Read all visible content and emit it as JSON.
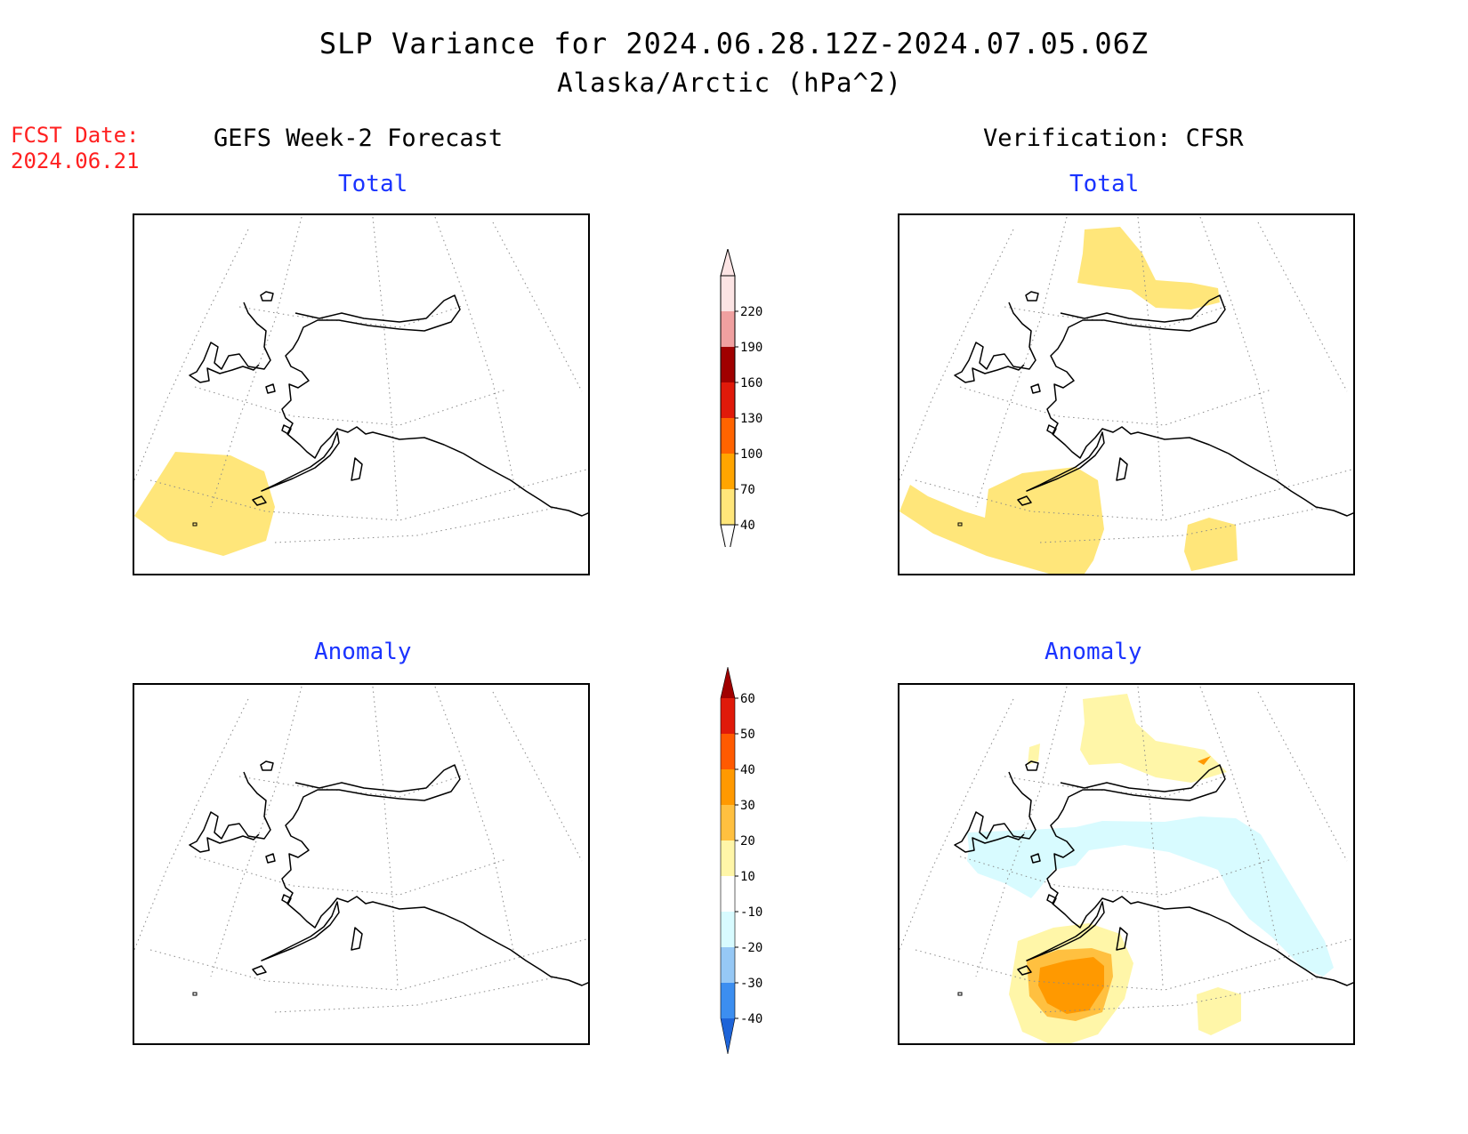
{
  "header": {
    "title": "SLP Variance for 2024.06.28.12Z-2024.07.05.06Z",
    "subtitle": "Alaska/Arctic (hPa^2)",
    "fcst_label": "FCST Date:",
    "fcst_date": "2024.06.21"
  },
  "columns": {
    "left": "GEFS Week-2 Forecast",
    "right": "Verification: CFSR"
  },
  "panels": {
    "forecast_total": {
      "label": "Total"
    },
    "verif_total": {
      "label": "Total"
    },
    "forecast_anomaly": {
      "label": "Anomaly"
    },
    "verif_anomaly": {
      "label": "Anomaly"
    }
  },
  "colorbars": {
    "total": {
      "ticks": [
        "40",
        "70",
        "100",
        "130",
        "160",
        "190",
        "220"
      ],
      "colors": [
        "#ffe67a",
        "#ffa500",
        "#ff6400",
        "#e01a0a",
        "#a00000",
        "#f0a0a0",
        "#fce4e4"
      ]
    },
    "anomaly": {
      "ticks": [
        "-40",
        "-30",
        "-20",
        "-10",
        "10",
        "20",
        "30",
        "40",
        "50",
        "60"
      ],
      "colors": [
        "#1e64d8",
        "#3c8ef0",
        "#96c8f5",
        "#d8fbff",
        "#ffffff",
        "#fff6a8",
        "#ffc040",
        "#ff9900",
        "#ff5a00",
        "#e01a0a",
        "#a00000"
      ]
    }
  },
  "palette": {
    "title_red": "#ff2020",
    "panel_blue": "#1a33ff"
  }
}
